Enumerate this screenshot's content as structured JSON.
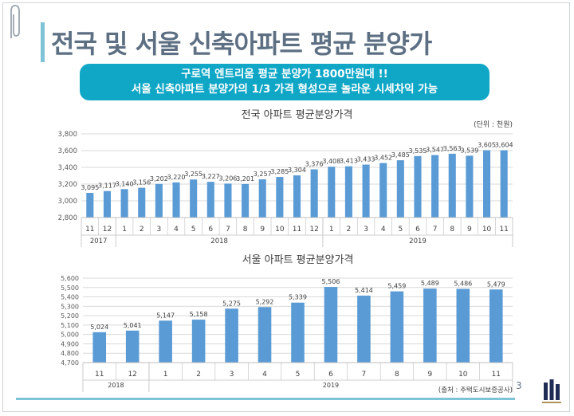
{
  "slide": {
    "title": "전국 및 서울 신축아파트 평균 분양가",
    "banner_line1": "구로역 엔트리움 평균 분양가 1800만원대 !!",
    "banner_line2": "서울 신축아파트 분양가의 1/3 가격 형성으로 놀라운 시세차익 가능",
    "unit_note": "(단위 : 천원)",
    "source_note": "(출처 : 주택도시보증공사)",
    "page_number": "3",
    "accent_color": "#10a7c7",
    "bar_color": "#5b9bd5"
  },
  "chart_data": [
    {
      "type": "bar",
      "title": "전국 아파트 평균분양가격",
      "categories": [
        "11",
        "12",
        "1",
        "2",
        "3",
        "4",
        "5",
        "6",
        "7",
        "8",
        "9",
        "10",
        "11",
        "12",
        "1",
        "2",
        "3",
        "4",
        "5",
        "6",
        "7",
        "8",
        "9",
        "10",
        "11"
      ],
      "year_groups": [
        {
          "label": "2017",
          "count": 2
        },
        {
          "label": "2018",
          "count": 12
        },
        {
          "label": "2019",
          "count": 11
        }
      ],
      "values": [
        3095,
        3117,
        3140,
        3156,
        3202,
        3220,
        3255,
        3227,
        3206,
        3201,
        3257,
        3285,
        3304,
        3376,
        3408,
        3413,
        3433,
        3452,
        3485,
        3535,
        3547,
        3563,
        3539,
        3605,
        3604
      ],
      "value_labels": [
        "3,095",
        "3,117",
        "3,140",
        "3,156",
        "3,202",
        "3,220",
        "3,255",
        "3,227",
        "3,206",
        "3,201",
        "3,257",
        "3,285",
        "3,304",
        "3,376",
        "3,408",
        "3,413",
        "3,433",
        "3,452",
        "3,485",
        "3,535",
        "3,547",
        "3,563",
        "3,539",
        "3,605",
        "3,604"
      ],
      "ylim": [
        2800,
        3800
      ],
      "yticks": [
        "2,800",
        "3,000",
        "3,200",
        "3,400",
        "3,600",
        "3,800"
      ],
      "ytick_values": [
        2800,
        3000,
        3200,
        3400,
        3600,
        3800
      ],
      "grid": true
    },
    {
      "type": "bar",
      "title": "서울 아파트 평균분양가격",
      "categories": [
        "11",
        "12",
        "1",
        "2",
        "3",
        "4",
        "5",
        "6",
        "7",
        "8",
        "9",
        "10",
        "11"
      ],
      "year_groups": [
        {
          "label": "2018",
          "count": 2
        },
        {
          "label": "2019",
          "count": 11
        }
      ],
      "values": [
        5024,
        5041,
        5147,
        5158,
        5275,
        5292,
        5339,
        5506,
        5414,
        5459,
        5489,
        5486,
        5479
      ],
      "value_labels": [
        "5,024",
        "5,041",
        "5,147",
        "5,158",
        "5,275",
        "5,292",
        "5,339",
        "5,506",
        "5,414",
        "5,459",
        "5,489",
        "5,486",
        "5,479"
      ],
      "ylim": [
        4700,
        5600
      ],
      "yticks": [
        "4,700",
        "4,800",
        "4,900",
        "5,000",
        "5,100",
        "5,200",
        "5,300",
        "5,400",
        "5,500",
        "5,600"
      ],
      "ytick_values": [
        4700,
        4800,
        4900,
        5000,
        5100,
        5200,
        5300,
        5400,
        5500,
        5600
      ],
      "grid": true
    }
  ]
}
